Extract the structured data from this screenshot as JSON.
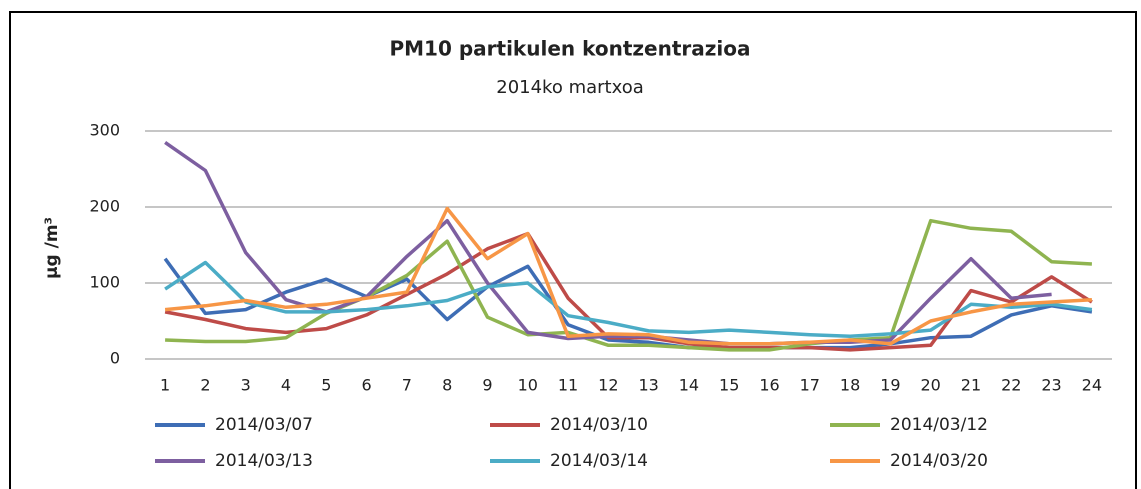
{
  "chart_data": {
    "type": "line",
    "title": "PM10 partikulen kontzentrazioa",
    "subtitle": "2014ko martxoa",
    "y_label": "µg /m³",
    "categories": [
      "1",
      "2",
      "3",
      "4",
      "5",
      "6",
      "7",
      "8",
      "9",
      "10",
      "11",
      "12",
      "13",
      "14",
      "15",
      "16",
      "17",
      "18",
      "19",
      "20",
      "21",
      "22",
      "23",
      "24"
    ],
    "ylim": [
      0,
      300
    ],
    "yticks": [
      0,
      100,
      200,
      300
    ],
    "grid": true,
    "legend": "bottom",
    "series": [
      {
        "name": "2014/03/07",
        "color": "#3e6db5",
        "values": [
          132,
          60,
          65,
          88,
          105,
          82,
          105,
          52,
          95,
          122,
          45,
          25,
          22,
          15,
          15,
          15,
          15,
          15,
          20,
          28,
          30,
          58,
          70,
          62
        ]
      },
      {
        "name": "2014/03/10",
        "color": "#be4b48",
        "values": [
          62,
          52,
          40,
          35,
          40,
          58,
          85,
          112,
          145,
          165,
          80,
          28,
          28,
          20,
          15,
          15,
          15,
          12,
          15,
          18,
          90,
          75,
          108,
          75
        ]
      },
      {
        "name": "2014/03/12",
        "color": "#8fb450",
        "values": [
          25,
          23,
          23,
          28,
          60,
          82,
          110,
          155,
          55,
          32,
          35,
          18,
          18,
          15,
          12,
          12,
          20,
          25,
          28,
          182,
          172,
          168,
          128,
          125
        ]
      },
      {
        "name": "2014/03/13",
        "color": "#7d5fa0",
        "values": [
          285,
          248,
          140,
          78,
          62,
          82,
          135,
          182,
          100,
          35,
          27,
          30,
          30,
          25,
          20,
          20,
          22,
          22,
          25,
          80,
          132,
          80,
          85,
          null
        ]
      },
      {
        "name": "2014/03/14",
        "color": "#4bacc6",
        "values": [
          92,
          127,
          75,
          62,
          62,
          65,
          70,
          77,
          95,
          100,
          57,
          48,
          37,
          35,
          38,
          35,
          32,
          30,
          33,
          38,
          72,
          68,
          72,
          65
        ]
      },
      {
        "name": "2014/03/20",
        "color": "#f79646",
        "values": [
          65,
          70,
          77,
          68,
          72,
          80,
          88,
          198,
          132,
          165,
          30,
          33,
          32,
          22,
          20,
          20,
          22,
          25,
          20,
          50,
          62,
          72,
          75,
          78
        ]
      }
    ]
  }
}
